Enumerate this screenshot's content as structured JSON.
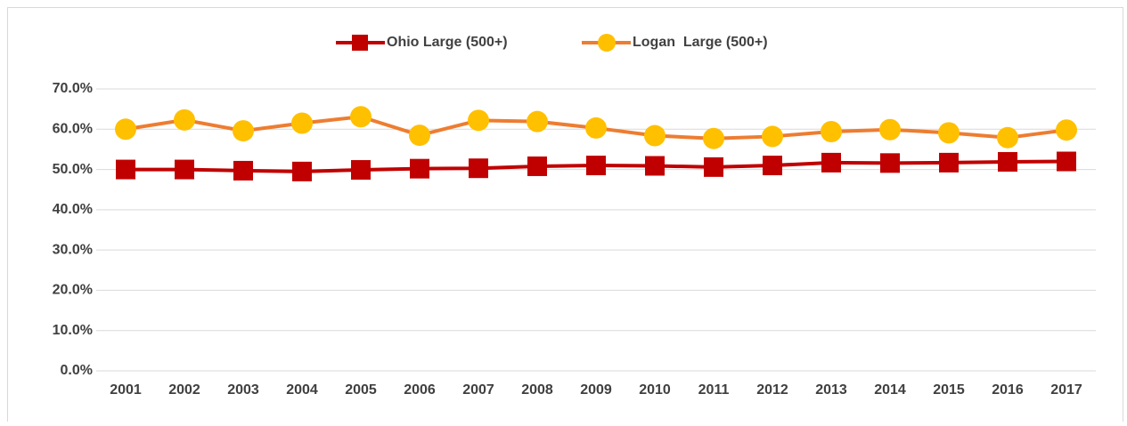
{
  "chart_data": {
    "type": "line",
    "categories": [
      "2001",
      "2002",
      "2003",
      "2004",
      "2005",
      "2006",
      "2007",
      "2008",
      "2009",
      "2010",
      "2011",
      "2012",
      "2013",
      "2014",
      "2015",
      "2016",
      "2017"
    ],
    "series": [
      {
        "name": "Ohio Large (500+)",
        "color": "#c00000",
        "marker": "square",
        "marker_color": "#c00000",
        "values": [
          50.0,
          50.0,
          49.7,
          49.5,
          49.9,
          50.2,
          50.3,
          50.8,
          51.0,
          50.9,
          50.6,
          51.0,
          51.7,
          51.6,
          51.7,
          51.9,
          52.0
        ]
      },
      {
        "name": "Logan  Large (500+)",
        "color": "#ed7d31",
        "marker": "circle",
        "marker_color": "#ffc000",
        "values": [
          60.0,
          62.3,
          59.6,
          61.5,
          63.1,
          58.5,
          62.2,
          61.9,
          60.3,
          58.4,
          57.7,
          58.2,
          59.4,
          59.9,
          59.1,
          57.9,
          59.8
        ]
      }
    ],
    "ylim": [
      0,
      70
    ],
    "yticks": [
      {
        "value": 0,
        "label": "0.0%"
      },
      {
        "value": 10,
        "label": "10.0%"
      },
      {
        "value": 20,
        "label": "20.0%"
      },
      {
        "value": 30,
        "label": "30.0%"
      },
      {
        "value": 40,
        "label": "40.0%"
      },
      {
        "value": 50,
        "label": "50.0%"
      },
      {
        "value": 60,
        "label": "60.0%"
      },
      {
        "value": 70,
        "label": "70.0%"
      }
    ],
    "grid": true,
    "legend": "top"
  }
}
